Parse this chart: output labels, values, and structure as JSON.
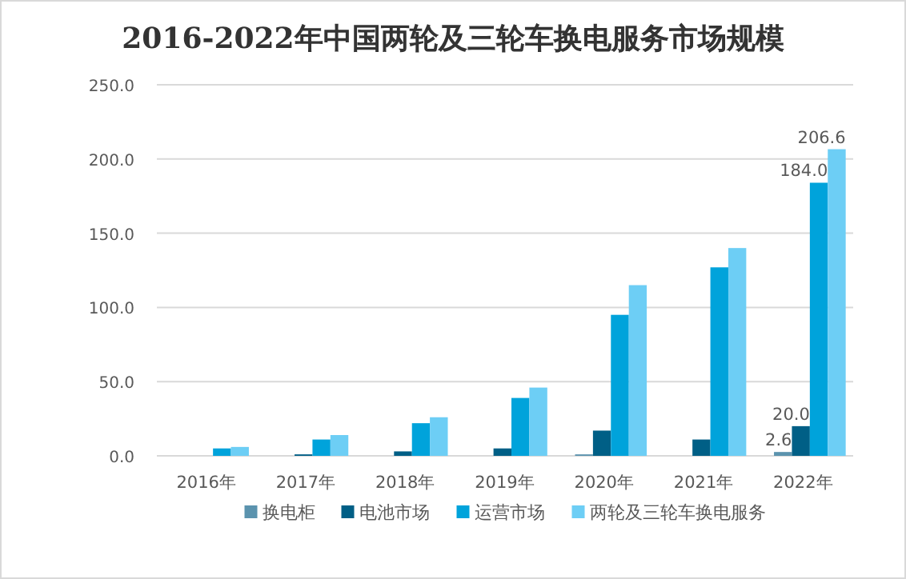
{
  "chart_data": {
    "type": "bar",
    "title": "2016-2022年中国两轮及三轮车换电服务市场规模",
    "categories": [
      "2016年",
      "2017年",
      "2018年",
      "2019年",
      "2020年",
      "2021年",
      "2022年"
    ],
    "series": [
      {
        "name": "换电柜",
        "color": "#5b93ae",
        "values": [
          0,
          0,
          0,
          0,
          1,
          0,
          2.6
        ],
        "value_labels": [
          null,
          null,
          null,
          null,
          null,
          null,
          "2.6"
        ]
      },
      {
        "name": "电池市场",
        "color": "#005f86",
        "values": [
          0,
          1,
          3,
          5,
          17,
          11,
          20.0
        ],
        "value_labels": [
          null,
          null,
          null,
          null,
          null,
          null,
          "20.0"
        ]
      },
      {
        "name": "运营市场",
        "color": "#00a3db",
        "values": [
          5,
          11,
          22,
          39,
          95,
          127,
          184.0
        ],
        "value_labels": [
          null,
          null,
          null,
          null,
          null,
          null,
          "184.0"
        ]
      },
      {
        "name": "两轮及三轮车换电服务",
        "color": "#6dcef5",
        "values": [
          6,
          14,
          26,
          46,
          115,
          140,
          206.6
        ],
        "value_labels": [
          null,
          null,
          null,
          null,
          null,
          null,
          "206.6"
        ]
      }
    ],
    "ylim": [
      0,
      250
    ],
    "yticks": [
      {
        "value": 0,
        "label": "0.0"
      },
      {
        "value": 50,
        "label": "50.0"
      },
      {
        "value": 100,
        "label": "100.0"
      },
      {
        "value": 150,
        "label": "150.0"
      },
      {
        "value": 200,
        "label": "200.0"
      },
      {
        "value": 250,
        "label": "250.0"
      }
    ],
    "grid": "y",
    "legend": "bottom"
  }
}
